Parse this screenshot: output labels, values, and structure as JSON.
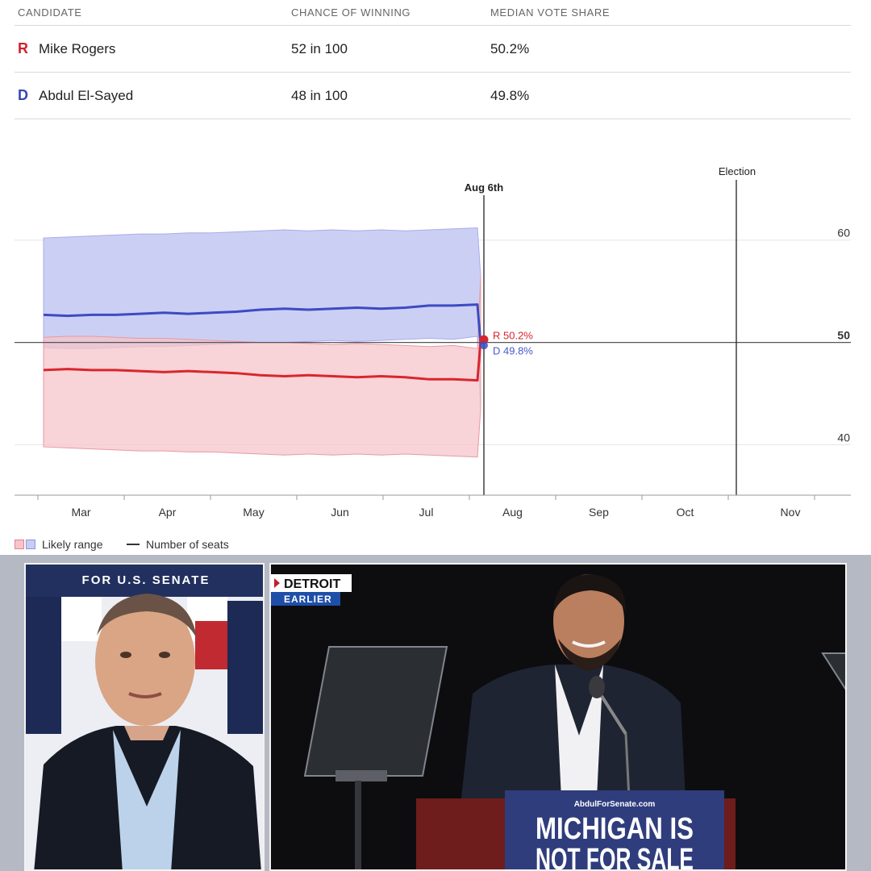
{
  "table": {
    "headers": [
      "CANDIDATE",
      "CHANCE OF WINNING",
      "MEDIAN VOTE SHARE"
    ],
    "rows": [
      {
        "party": "R",
        "name": "Mike Rogers",
        "chance": "52 in 100",
        "share": "50.2%"
      },
      {
        "party": "D",
        "name": "Abdul El-Sayed",
        "chance": "48 in 100",
        "share": "49.8%"
      }
    ]
  },
  "chart_data": {
    "type": "area",
    "x_axis": {
      "ticks": [
        "Mar",
        "Apr",
        "May",
        "Jun",
        "Jul",
        "Aug",
        "Sep",
        "Oct",
        "Nov"
      ]
    },
    "y_axis": {
      "ticks": [
        60,
        50,
        40
      ],
      "ylim": [
        35,
        61
      ]
    },
    "today_label": "Aug 6th",
    "election_label": "Election",
    "end_labels": {
      "r": "R 50.2%",
      "d": "D 49.8%"
    },
    "colors": {
      "r_line": "#d9262e",
      "d_line": "#3c4bc2",
      "r_band": "#f6c4ca",
      "d_band": "#c9ccf3"
    },
    "series": [
      {
        "name": "R",
        "values": [
          47.3,
          47.4,
          47.3,
          47.3,
          47.2,
          47.1,
          47.2,
          47.1,
          47.0,
          46.8,
          46.7,
          46.8,
          46.7,
          46.6,
          46.7,
          46.6,
          46.4,
          46.4,
          46.3,
          50.2
        ],
        "low": [
          39.8,
          39.7,
          39.6,
          39.5,
          39.4,
          39.4,
          39.3,
          39.3,
          39.2,
          39.1,
          39.0,
          39.1,
          39.0,
          39.1,
          39.0,
          39.1,
          39.0,
          38.9,
          38.8,
          43.5
        ],
        "high": [
          50.5,
          50.6,
          50.6,
          50.5,
          50.4,
          50.4,
          50.3,
          50.2,
          50.1,
          50.0,
          50.0,
          49.9,
          49.8,
          49.9,
          49.8,
          49.7,
          49.6,
          49.7,
          49.4,
          56.5
        ]
      },
      {
        "name": "D",
        "values": [
          52.7,
          52.6,
          52.7,
          52.7,
          52.8,
          52.9,
          52.8,
          52.9,
          53.0,
          53.2,
          53.3,
          53.2,
          53.3,
          53.4,
          53.3,
          53.4,
          53.6,
          53.6,
          53.7,
          49.8
        ],
        "low": [
          49.5,
          49.4,
          49.4,
          49.5,
          49.6,
          49.6,
          49.7,
          49.8,
          49.9,
          50.0,
          50.0,
          50.1,
          50.2,
          50.1,
          50.2,
          50.3,
          50.4,
          50.3,
          50.6,
          43.5
        ],
        "high": [
          60.2,
          60.3,
          60.4,
          60.5,
          60.6,
          60.6,
          60.7,
          60.7,
          60.8,
          60.9,
          61.0,
          60.9,
          61.0,
          60.9,
          61.0,
          60.9,
          61.0,
          61.1,
          61.2,
          56.5
        ]
      }
    ]
  },
  "legend": {
    "likely_range": "Likely range",
    "number_of_seats": "Number of seats"
  },
  "video": {
    "left_banner": "FOR U.S. SENATE",
    "location": "DETROIT",
    "time_tag": "EARLIER",
    "podium_url": "AbdulForSenate.com",
    "podium_line1": "MICHIGAN IS",
    "podium_line2": "NOT FOR SALE"
  }
}
